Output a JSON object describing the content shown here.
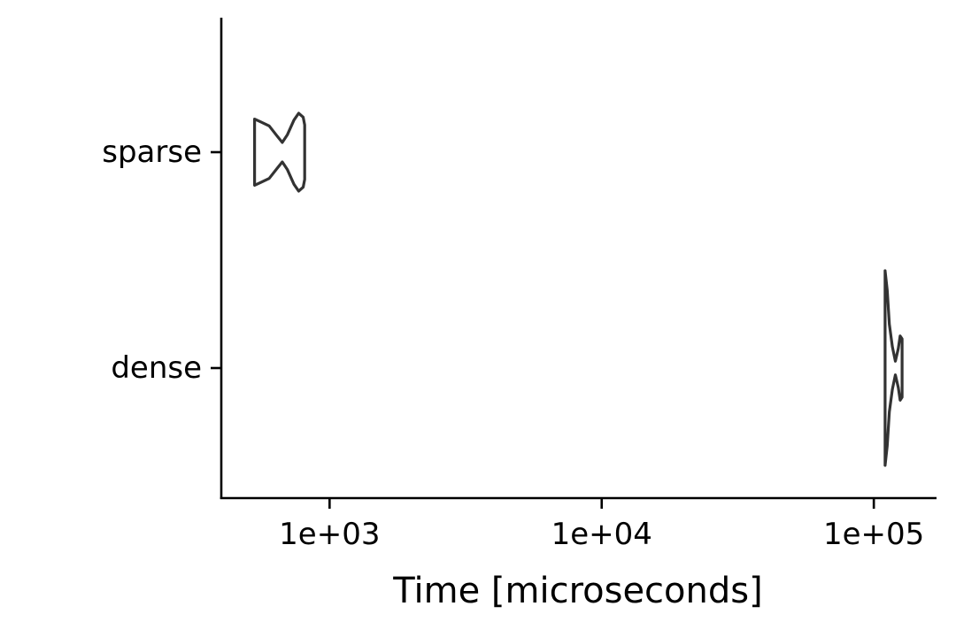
{
  "chart_data": {
    "type": "violin",
    "orientation": "horizontal",
    "xlabel": "Time [microseconds]",
    "x_scale": "log10",
    "xlim": [
      400,
      170000
    ],
    "x_ticks": [
      1000,
      10000,
      100000
    ],
    "x_tick_labels": [
      "1e+03",
      "1e+04",
      "1e+05"
    ],
    "categories": [
      "sparse",
      "dense"
    ],
    "grid": false,
    "series": [
      {
        "name": "sparse",
        "profile": [
          {
            "x": 530,
            "density": 0.34
          },
          {
            "x": 560,
            "density": 0.31
          },
          {
            "x": 600,
            "density": 0.27
          },
          {
            "x": 640,
            "density": 0.17
          },
          {
            "x": 670,
            "density": 0.1
          },
          {
            "x": 700,
            "density": 0.18
          },
          {
            "x": 740,
            "density": 0.33
          },
          {
            "x": 770,
            "density": 0.4
          },
          {
            "x": 800,
            "density": 0.36
          },
          {
            "x": 810,
            "density": 0.28
          }
        ]
      },
      {
        "name": "dense",
        "profile": [
          {
            "x": 110000,
            "density": 1.0
          },
          {
            "x": 112000,
            "density": 0.8
          },
          {
            "x": 114000,
            "density": 0.45
          },
          {
            "x": 117000,
            "density": 0.22
          },
          {
            "x": 120000,
            "density": 0.07
          },
          {
            "x": 123000,
            "density": 0.2
          },
          {
            "x": 125000,
            "density": 0.33
          },
          {
            "x": 127000,
            "density": 0.3
          }
        ]
      }
    ]
  }
}
